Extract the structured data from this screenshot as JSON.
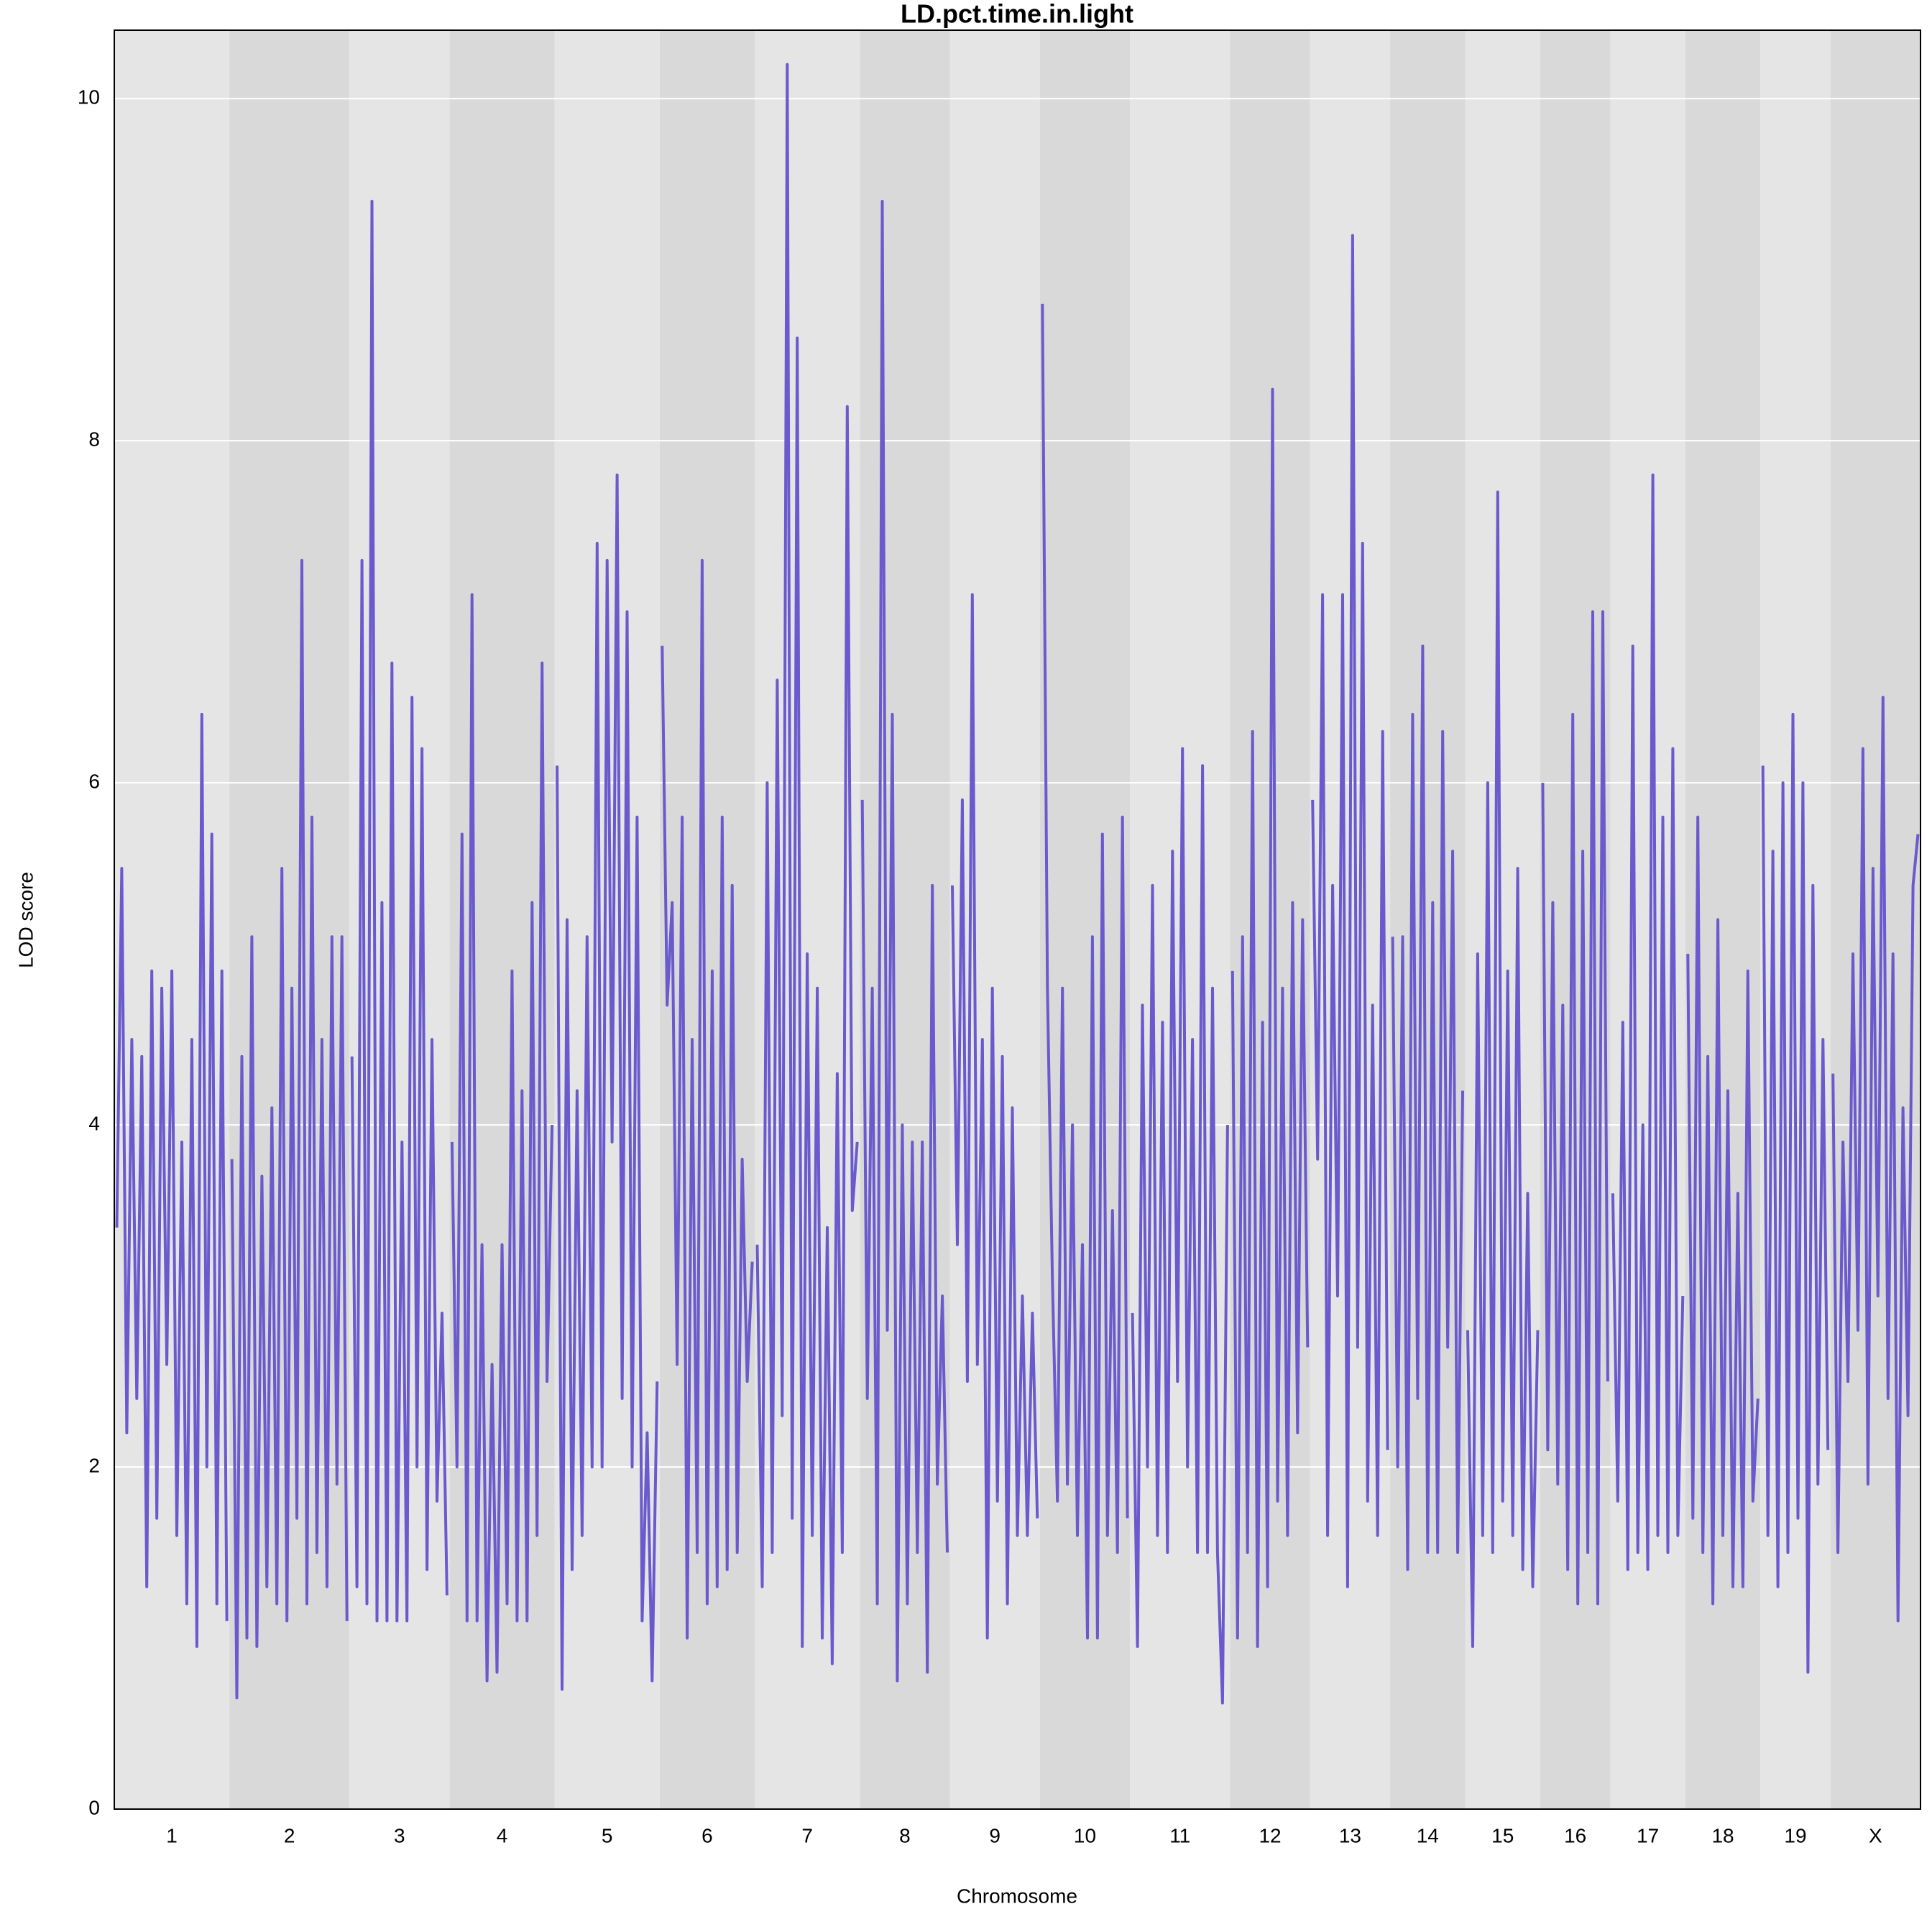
{
  "chart_data": {
    "type": "line",
    "title": "LD.pct.time.in.light",
    "x_label": "Chromosome",
    "y_label": "LOD score",
    "color": "#6a5acd",
    "band_colors": [
      "#e5e5e5",
      "#d9d9d9"
    ],
    "grid": true,
    "ylim": [
      0,
      10.4
    ],
    "yticks": [
      0,
      2,
      4,
      6,
      8,
      10
    ],
    "categories": [
      "1",
      "2",
      "3",
      "4",
      "5",
      "6",
      "7",
      "8",
      "9",
      "10",
      "11",
      "12",
      "13",
      "14",
      "15",
      "16",
      "17",
      "18",
      "19",
      "X"
    ],
    "values": [
      [
        3.4,
        5.5,
        2.2,
        4.5,
        2.4,
        4.4,
        1.3,
        4.9,
        1.7,
        4.8,
        2.6,
        4.9,
        1.6,
        3.9,
        1.2,
        4.5,
        0.95,
        6.4,
        2.0,
        5.7,
        1.2,
        4.9,
        1.1
      ],
      [
        3.8,
        0.65,
        4.4,
        1.0,
        5.1,
        0.95,
        3.7,
        1.3,
        4.1,
        1.2,
        5.5,
        1.1,
        4.8,
        1.7,
        7.3,
        1.2,
        5.8,
        1.5,
        4.5,
        1.3,
        5.1,
        1.9,
        5.1,
        1.1
      ],
      [
        4.4,
        1.3,
        7.3,
        1.2,
        9.4,
        1.1,
        5.3,
        1.1,
        6.7,
        1.1,
        3.9,
        1.1,
        6.5,
        2.0,
        6.2,
        1.4,
        4.5,
        1.8,
        2.9,
        1.25
      ],
      [
        3.9,
        2.0,
        5.7,
        1.1,
        7.1,
        1.1,
        3.3,
        0.75,
        2.6,
        0.8,
        3.3,
        1.2,
        4.9,
        1.1,
        4.2,
        1.1,
        5.3,
        1.6,
        6.7,
        2.5,
        4.0
      ],
      [
        6.1,
        0.7,
        5.2,
        1.4,
        4.2,
        1.6,
        5.1,
        2.0,
        7.4,
        2.0,
        7.3,
        3.9,
        7.8,
        2.4,
        7.0,
        2.0,
        5.8,
        1.1,
        2.2,
        0.75,
        2.5
      ],
      [
        6.8,
        4.7,
        5.3,
        2.6,
        5.8,
        1.0,
        4.5,
        1.5,
        7.3,
        1.2,
        4.9,
        1.3,
        5.8,
        1.4,
        5.4,
        1.5,
        3.8,
        2.5,
        3.2
      ],
      [
        3.3,
        1.3,
        6.0,
        1.5,
        6.6,
        2.3,
        10.2,
        1.7,
        8.6,
        0.95,
        5.0,
        1.6,
        4.8,
        1.0,
        3.4,
        0.85,
        4.3,
        1.5,
        8.2,
        3.5,
        3.9
      ],
      [
        5.9,
        2.4,
        4.8,
        1.2,
        9.4,
        2.8,
        6.4,
        0.75,
        4.0,
        1.2,
        3.9,
        1.5,
        3.9,
        0.8,
        5.4,
        1.9,
        3.0,
        1.5
      ],
      [
        5.4,
        3.3,
        5.9,
        2.5,
        7.1,
        2.6,
        4.5,
        1.0,
        4.8,
        1.8,
        4.4,
        1.2,
        4.1,
        1.6,
        3.0,
        1.6,
        2.9,
        1.7
      ],
      [
        8.8,
        4.8,
        3.1,
        1.8,
        4.8,
        1.9,
        4.0,
        1.6,
        3.3,
        1.0,
        5.1,
        1.0,
        5.7,
        1.6,
        3.5,
        1.5,
        5.8,
        1.7
      ],
      [
        2.9,
        0.95,
        4.7,
        2.0,
        5.4,
        1.6,
        4.6,
        1.5,
        5.6,
        2.5,
        6.2,
        2.0,
        4.5,
        1.5,
        6.1,
        1.5,
        4.8,
        1.5,
        0.62,
        4.0
      ],
      [
        4.9,
        1.0,
        5.1,
        1.5,
        6.3,
        0.95,
        4.6,
        1.3,
        8.3,
        1.8,
        4.8,
        1.6,
        5.3,
        2.2,
        5.2,
        2.7
      ],
      [
        5.9,
        3.8,
        7.1,
        1.6,
        5.4,
        3.0,
        7.1,
        1.3,
        9.2,
        2.7,
        7.4,
        1.8,
        4.7,
        1.6,
        6.3,
        2.1
      ],
      [
        5.1,
        2.0,
        5.1,
        1.4,
        6.4,
        2.4,
        6.8,
        1.5,
        5.3,
        1.5,
        6.3,
        2.7,
        5.6,
        1.5,
        4.2
      ],
      [
        2.8,
        0.95,
        5.0,
        1.6,
        6.0,
        1.5,
        7.7,
        1.8,
        4.9,
        1.6,
        5.5,
        1.4,
        3.6,
        1.3,
        2.8
      ],
      [
        6.0,
        2.1,
        5.3,
        1.9,
        4.7,
        1.4,
        6.4,
        1.2,
        5.6,
        1.5,
        7.0,
        1.2,
        7.0,
        2.5
      ],
      [
        3.6,
        1.8,
        4.6,
        1.4,
        6.8,
        1.5,
        4.0,
        1.4,
        7.8,
        1.6,
        5.8,
        1.5,
        6.2,
        1.6,
        3.0
      ],
      [
        5.0,
        1.7,
        5.8,
        1.5,
        4.4,
        1.2,
        5.2,
        1.6,
        4.2,
        1.3,
        3.6,
        1.3,
        4.9,
        1.8,
        2.4
      ],
      [
        6.1,
        1.6,
        5.6,
        1.3,
        6.0,
        1.5,
        6.4,
        1.7,
        6.0,
        0.8,
        5.4,
        1.9,
        4.5,
        2.1
      ],
      [
        4.3,
        1.5,
        3.9,
        2.5,
        5.0,
        2.8,
        6.2,
        1.9,
        5.5,
        3.0,
        6.5,
        2.4,
        5.0,
        1.1,
        4.1,
        2.3,
        5.4,
        5.7
      ]
    ]
  }
}
